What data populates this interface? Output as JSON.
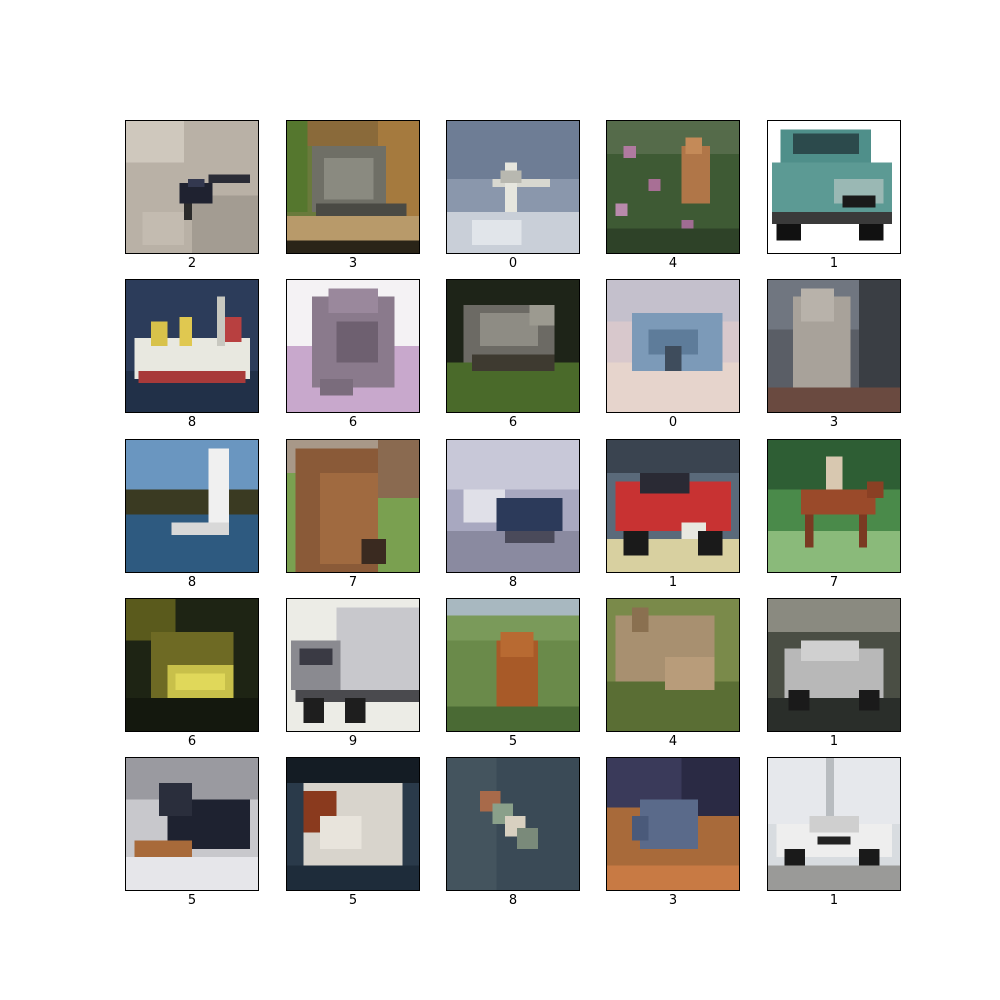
{
  "grid": {
    "rows": 5,
    "cols": 5,
    "items": [
      {
        "label": "2",
        "subject": "bird on rocky ground"
      },
      {
        "label": "3",
        "subject": "cat lying on a ledge"
      },
      {
        "label": "0",
        "subject": "airplane in the sky"
      },
      {
        "label": "4",
        "subject": "deer among plants"
      },
      {
        "label": "1",
        "subject": "car (teal hatchback)"
      },
      {
        "label": "8",
        "subject": "ship at sea"
      },
      {
        "label": "6",
        "subject": "frog on white background"
      },
      {
        "label": "6",
        "subject": "frog in grass"
      },
      {
        "label": "0",
        "subject": "airplane over mountains"
      },
      {
        "label": "3",
        "subject": "kitten"
      },
      {
        "label": "8",
        "subject": "sailboat on a lake"
      },
      {
        "label": "7",
        "subject": "horse head"
      },
      {
        "label": "8",
        "subject": "boat on water"
      },
      {
        "label": "1",
        "subject": "red sports car"
      },
      {
        "label": "7",
        "subject": "horse with rider"
      },
      {
        "label": "6",
        "subject": "frog in the dark"
      },
      {
        "label": "9",
        "subject": "truck"
      },
      {
        "label": "5",
        "subject": "dog on grass"
      },
      {
        "label": "4",
        "subject": "deer grazing"
      },
      {
        "label": "1",
        "subject": "silver car"
      },
      {
        "label": "5",
        "subject": "black dog lying down"
      },
      {
        "label": "5",
        "subject": "dog sleeping"
      },
      {
        "label": "8",
        "subject": "ship seen from above"
      },
      {
        "label": "3",
        "subject": "cat on floor"
      },
      {
        "label": "1",
        "subject": "white police car"
      }
    ]
  }
}
